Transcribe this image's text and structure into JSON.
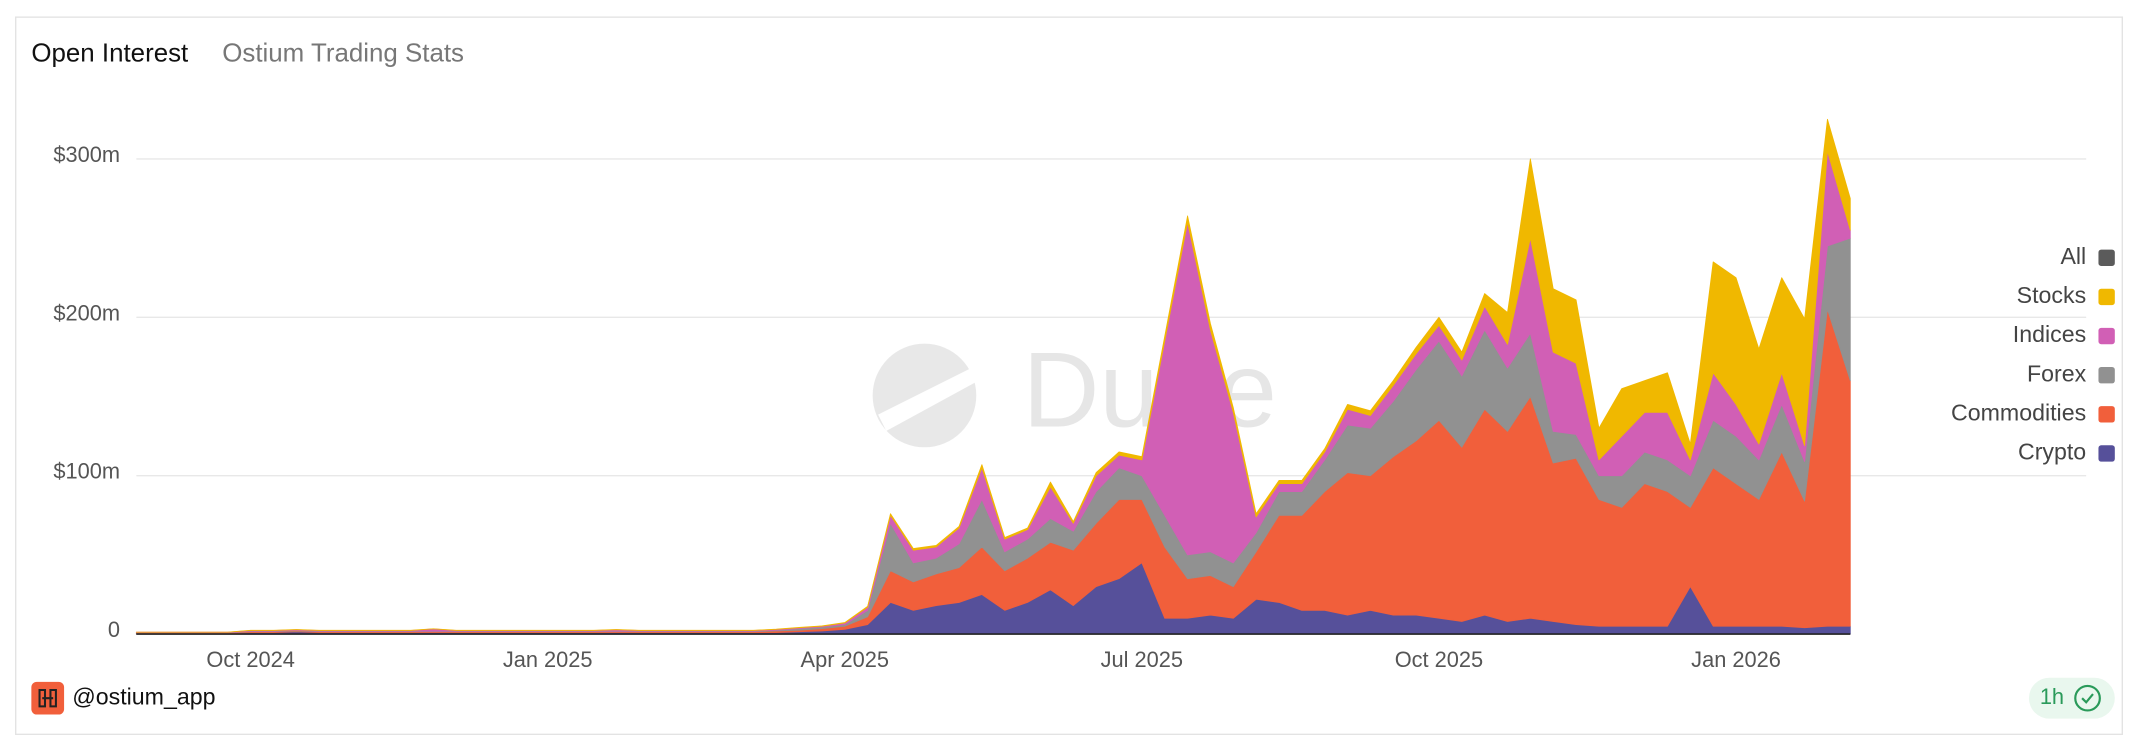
{
  "chart_data": {
    "type": "stacked_area",
    "title": "Open Interest",
    "subtitle": "Ostium Trading Stats",
    "watermark": "Dune",
    "categories": [
      null,
      null,
      null,
      null,
      null,
      "Oct 2024",
      null,
      null,
      null,
      null,
      null,
      null,
      null,
      null,
      null,
      null,
      null,
      null,
      "Jan 2025",
      null,
      null,
      null,
      null,
      null,
      null,
      null,
      null,
      null,
      null,
      null,
      null,
      "Apr 2025",
      null,
      null,
      null,
      null,
      null,
      null,
      null,
      null,
      null,
      null,
      null,
      null,
      "Jul 2025",
      null,
      null,
      null,
      null,
      null,
      null,
      null,
      null,
      null,
      null,
      null,
      null,
      "Oct 2025",
      null,
      null,
      null,
      null,
      null,
      null,
      null,
      null,
      null,
      null,
      null,
      null,
      "Jan 2026",
      null,
      null,
      null,
      null,
      null
    ],
    "ylim": [
      0,
      340
    ],
    "yticks": [
      0,
      {
        "value": 100,
        "label": "$100m"
      },
      {
        "value": 200,
        "label": "$200m"
      },
      {
        "value": 300,
        "label": "$300m"
      }
    ],
    "grid": true,
    "legend": "right",
    "series": [
      {
        "name": "All",
        "color": "#5b5b5b",
        "values": [
          null,
          null,
          null,
          null,
          null,
          null,
          null,
          null,
          null,
          null,
          null,
          null,
          null,
          null,
          null,
          null,
          null,
          null,
          null,
          null,
          null,
          null,
          null,
          null,
          null,
          null,
          null,
          null,
          null,
          null,
          null,
          null,
          null,
          null,
          null,
          null,
          null,
          null,
          null,
          null,
          null,
          null,
          null,
          null,
          null,
          null,
          null,
          null,
          null,
          null,
          null,
          null,
          null,
          null,
          null,
          null,
          null,
          null,
          null,
          null,
          null,
          null,
          null,
          null,
          null,
          null,
          null,
          null,
          null,
          null,
          null,
          null,
          null,
          null,
          null,
          null
        ]
      },
      {
        "name": "Stocks",
        "color": "#f0b800",
        "values": [
          0,
          0,
          0,
          0,
          0,
          0.1,
          0.1,
          0.1,
          0.1,
          0.1,
          0.1,
          0.1,
          0.1,
          0.1,
          0.1,
          0.1,
          0.1,
          0.1,
          0.1,
          0.1,
          0.1,
          0.1,
          0.1,
          0.1,
          0.1,
          0.1,
          0.1,
          0.1,
          0.1,
          0.2,
          0.2,
          0.3,
          0.5,
          1,
          1,
          1,
          1,
          2,
          1,
          1,
          3,
          1,
          2,
          2,
          2,
          3,
          4,
          4,
          3,
          2,
          2,
          2,
          2,
          3,
          3,
          3,
          4,
          5,
          5,
          8,
          20,
          50,
          40,
          40,
          20,
          30,
          20,
          25,
          10,
          70,
          80,
          60,
          60,
          80,
          20,
          20
        ]
      },
      {
        "name": "Indices",
        "color": "#d15fb5",
        "values": [
          0.2,
          0.2,
          0.2,
          0.2,
          0.2,
          0.5,
          0.5,
          0.5,
          0.5,
          0.5,
          0.5,
          0.5,
          0.5,
          1.5,
          0.5,
          0.5,
          0.5,
          0.5,
          0.5,
          0.5,
          0.5,
          1,
          0.5,
          0.5,
          0.5,
          0.5,
          0.5,
          0.5,
          0.5,
          0.5,
          0.5,
          1,
          2,
          5,
          8,
          7,
          10,
          20,
          8,
          6,
          20,
          5,
          10,
          8,
          10,
          110,
          210,
          140,
          95,
          10,
          5,
          5,
          5,
          10,
          8,
          10,
          10,
          10,
          10,
          15,
          15,
          60,
          50,
          45,
          10,
          25,
          25,
          30,
          10,
          30,
          20,
          10,
          20,
          10,
          60,
          5
        ]
      },
      {
        "name": "Forex",
        "color": "#919191",
        "values": [
          0.2,
          0.2,
          0.2,
          0.2,
          0.2,
          0.3,
          0.3,
          0.3,
          0.3,
          0.3,
          0.3,
          0.3,
          0.3,
          0.3,
          0.3,
          0.3,
          0.3,
          0.3,
          0.3,
          0.3,
          0.3,
          0.3,
          0.3,
          0.3,
          0.3,
          0.3,
          0.3,
          0.3,
          0.5,
          1,
          1,
          1,
          4,
          30,
          12,
          10,
          15,
          30,
          12,
          12,
          15,
          12,
          20,
          20,
          15,
          20,
          15,
          15,
          15,
          12,
          15,
          15,
          20,
          30,
          30,
          35,
          45,
          50,
          45,
          50,
          40,
          40,
          20,
          15,
          15,
          20,
          20,
          20,
          20,
          30,
          30,
          25,
          30,
          25,
          40,
          90
        ]
      },
      {
        "name": "Commodities",
        "color": "#f15f3b",
        "values": [
          0.3,
          0.3,
          0.3,
          0.3,
          0.3,
          0.5,
          0.5,
          0.5,
          0.5,
          0.5,
          0.5,
          0.5,
          0.5,
          0.5,
          0.5,
          0.5,
          0.5,
          0.5,
          0.5,
          0.5,
          0.5,
          0.5,
          0.5,
          0.5,
          0.5,
          0.5,
          0.5,
          0.5,
          1,
          1,
          1.5,
          2,
          5,
          20,
          18,
          20,
          22,
          30,
          25,
          28,
          30,
          35,
          40,
          50,
          40,
          45,
          25,
          25,
          20,
          30,
          55,
          60,
          75,
          90,
          85,
          100,
          110,
          125,
          110,
          130,
          120,
          140,
          100,
          105,
          80,
          75,
          90,
          85,
          50,
          100,
          90,
          80,
          110,
          80,
          200,
          155
        ]
      },
      {
        "name": "Crypto",
        "color": "#56509a",
        "values": [
          0.5,
          0.5,
          0.5,
          0.5,
          0.5,
          1,
          1,
          1.5,
          1,
          1,
          1,
          1,
          1,
          1,
          1,
          1,
          1,
          1,
          1,
          1,
          1,
          1,
          1,
          1,
          1,
          1,
          1,
          1,
          1,
          1.5,
          2,
          3,
          6,
          20,
          15,
          18,
          20,
          25,
          15,
          20,
          28,
          18,
          30,
          35,
          45,
          10,
          10,
          12,
          10,
          22,
          20,
          15,
          15,
          12,
          15,
          12,
          12,
          10,
          8,
          12,
          8,
          10,
          8,
          6,
          5,
          5,
          5,
          5,
          30,
          5,
          5,
          5,
          5,
          4,
          5,
          5
        ]
      }
    ]
  },
  "author": "@ostium_app",
  "refresh": "1h"
}
